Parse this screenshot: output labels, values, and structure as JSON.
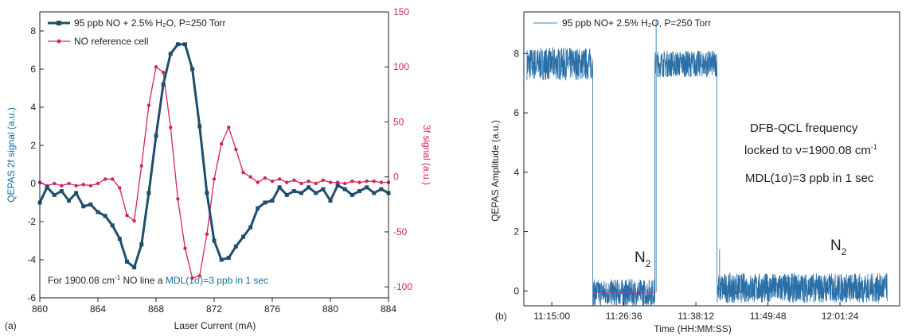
{
  "panel_a": {
    "tag": "(a)",
    "annotation_text": "For 1900.08 cm",
    "annotation_sup": "-1",
    "annotation_mid": " NO line a ",
    "annotation_mdl": "MDL(1σ)=3 ppb in 1 sec"
  },
  "panel_b": {
    "tag": "(b)",
    "n2_label": "N",
    "n2_sub": "2",
    "note_line1": "DFB-QCL frequency",
    "note_line2": "locked to ν=1900.08 cm",
    "note_line2_sup": "-1",
    "note_line3": "MDL(1σ)=3 ppb in 1 sec"
  },
  "colors": {
    "series_2f": "#1f4e6b",
    "series_3f": "#d6245a",
    "left_axis_label": "#1a6aa0",
    "right_axis_label": "#d6245a",
    "trace_b": "#2a6fa8",
    "trace_b_light": "#5b9fd0",
    "baseline_b": "#b83a8a"
  },
  "chart_data": [
    {
      "type": "line",
      "panel": "a",
      "xlabel": "Laser Current (mA)",
      "ylabel": "QEPAS 2f signal (a.u.)",
      "y2label": "3f signal (a.u.)",
      "xlim": [
        860,
        884
      ],
      "ylim": [
        -6,
        9
      ],
      "y2lim": [
        -110,
        150
      ],
      "xticks": [
        860,
        864,
        868,
        872,
        876,
        880,
        884
      ],
      "yticks": [
        -6,
        -4,
        -2,
        0,
        2,
        4,
        6,
        8
      ],
      "y2ticks": [
        -100,
        -50,
        0,
        50,
        100,
        150
      ],
      "legend_position": "top-left",
      "series": [
        {
          "name": "95 ppb NO + 2.5% H₂O, P=250 Torr",
          "axis": "left",
          "x": [
            860.0,
            860.5,
            861.0,
            861.5,
            862.0,
            862.5,
            863.0,
            863.5,
            864.0,
            864.5,
            865.0,
            865.5,
            866.0,
            866.5,
            867.0,
            867.5,
            868.0,
            868.5,
            869.0,
            869.5,
            870.0,
            870.5,
            871.0,
            871.5,
            872.0,
            872.5,
            873.0,
            873.5,
            874.0,
            874.5,
            875.0,
            875.5,
            876.0,
            876.5,
            877.0,
            877.5,
            878.0,
            878.5,
            879.0,
            879.5,
            880.0,
            880.5,
            881.0,
            881.5,
            882.0,
            882.5,
            883.0,
            883.5,
            884.0
          ],
          "y": [
            -1.0,
            -0.2,
            -0.6,
            -0.4,
            -0.9,
            -0.5,
            -1.2,
            -1.1,
            -1.5,
            -1.7,
            -2.2,
            -2.9,
            -4.1,
            -4.4,
            -3.2,
            -0.5,
            2.5,
            5.2,
            6.8,
            7.3,
            7.3,
            6.0,
            3.0,
            -0.5,
            -3.0,
            -4.0,
            -3.9,
            -3.3,
            -2.8,
            -2.3,
            -1.3,
            -1.0,
            -0.9,
            -0.2,
            -0.6,
            -0.4,
            -0.5,
            -0.2,
            -0.5,
            -0.3,
            -0.9,
            -0.1,
            -0.3,
            -0.6,
            -0.4,
            -0.2,
            -0.5,
            -0.3,
            -0.5
          ]
        },
        {
          "name": "NO reference cell",
          "axis": "right",
          "x": [
            860.0,
            860.5,
            861.0,
            861.5,
            862.0,
            862.5,
            863.0,
            863.5,
            864.0,
            864.5,
            865.0,
            865.5,
            866.0,
            866.5,
            867.0,
            867.5,
            868.0,
            868.5,
            869.0,
            869.5,
            870.0,
            870.5,
            871.0,
            871.5,
            872.0,
            872.5,
            873.0,
            873.5,
            874.0,
            874.5,
            875.0,
            875.5,
            876.0,
            876.5,
            877.0,
            877.5,
            878.0,
            878.5,
            879.0,
            879.5,
            880.0,
            880.5,
            881.0,
            881.5,
            882.0,
            882.5,
            883.0,
            883.5,
            884.0
          ],
          "y": [
            -5,
            -8,
            -6,
            -8,
            -6,
            -8,
            -7,
            -8,
            -6,
            -2,
            -2,
            -10,
            -35,
            -40,
            10,
            65,
            100,
            95,
            45,
            -20,
            -65,
            -92,
            -90,
            -52,
            -2,
            30,
            45,
            25,
            4,
            0,
            -5,
            -1,
            -4,
            -2,
            -5,
            -3,
            -6,
            -4,
            -6,
            -3,
            -5,
            -5,
            -6,
            -4,
            -5,
            -4,
            -4,
            -5,
            -5
          ]
        }
      ]
    },
    {
      "type": "line",
      "panel": "b",
      "xlabel": "Time (HH:MM:SS)",
      "ylabel": "QEPAS Amplitude (a.u.)",
      "ylim": [
        -0.5,
        9.4
      ],
      "yticks": [
        0,
        2,
        4,
        6,
        8
      ],
      "xtick_labels": [
        "11:15:00",
        "11:26:36",
        "11:38:12",
        "11:49:48",
        "12:01:24"
      ],
      "xtick_positions_minutes": [
        0,
        11.6,
        23.2,
        34.8,
        46.4
      ],
      "xlim_minutes": [
        -4.5,
        56
      ],
      "legend_position": "top-left",
      "series": [
        {
          "name": "95 ppb NO+ 2.5% H₂O, P=250 Torr",
          "segments": [
            {
              "t": [
                -4.0,
                6.6
              ],
              "level": 7.65,
              "noise": 0.55
            },
            {
              "t": [
                6.6,
                16.6
              ],
              "level": -0.05,
              "noise": 0.45
            },
            {
              "t": [
                16.6,
                26.6
              ],
              "level": 7.65,
              "noise": 0.45
            },
            {
              "t": [
                26.6,
                54.0
              ],
              "level": 0.1,
              "noise": 0.5
            }
          ],
          "spikes": [
            {
              "t": 16.8,
              "value": 9.1
            },
            {
              "t": 27.0,
              "value": 1.4
            }
          ]
        }
      ]
    }
  ]
}
